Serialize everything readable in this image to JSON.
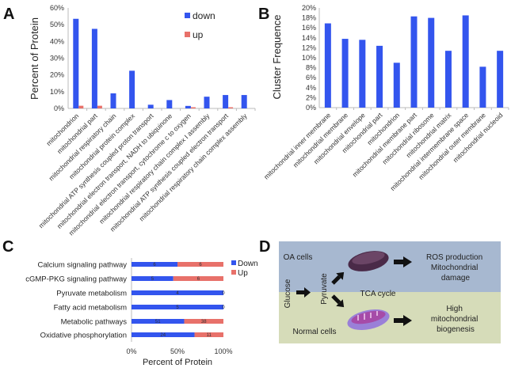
{
  "colors": {
    "down": "#3355ee",
    "up": "#e8716a",
    "oa_bg": "#a7b8d0",
    "normal_bg": "#d6dcb9",
    "arrow": "#111111"
  },
  "chart_data": [
    {
      "panel": "A",
      "type": "bar",
      "ylabel": "Percent of Protein",
      "ylim": [
        0,
        60
      ],
      "yticks": [
        "0%",
        "10%",
        "20%",
        "30%",
        "40%",
        "50%",
        "60%"
      ],
      "grid": false,
      "legend_position": "top-right",
      "categories": [
        "mitochondrion",
        "mitochondrial part",
        "mitochondrial respiratory chain",
        "mitochondrial protein complex",
        "mitochondrial ATP synthesis coupled proton transport",
        "mitochondrial electron transport, NADH to ubiquinone",
        "mitochondrial electron transport, cytochrome c to oxygen",
        "mitochondrial respiratory chain complex I assembly",
        "mitochondrial ATP synthesis coupled electron transport",
        "mitochondrial respiratory chain complex assembly"
      ],
      "series": [
        {
          "name": "down",
          "values": [
            53.5,
            47.5,
            9,
            22.5,
            2.2,
            5,
            1.5,
            7,
            8,
            8
          ]
        },
        {
          "name": "up",
          "values": [
            1.6,
            1.6,
            0,
            0,
            0,
            0,
            0.7,
            0,
            0.7,
            0
          ]
        }
      ]
    },
    {
      "panel": "B",
      "type": "bar",
      "ylabel": "Cluster Frequence",
      "ylim": [
        0,
        20
      ],
      "yticks": [
        "0%",
        "2%",
        "4%",
        "6%",
        "8%",
        "10%",
        "12%",
        "14%",
        "16%",
        "18%",
        "20%"
      ],
      "grid": false,
      "categories": [
        "mitochondrial inner membrane",
        "mitochondrial membrane",
        "mitochondrial envelope",
        "mitochondrial part",
        "mitochondrion",
        "mitochondrial membrane part",
        "mitochondrial ribosome",
        "mitochondrial matrix",
        "mitochondrial intermembrane space",
        "mitochondrial outer membrane",
        "mitochondrial nucleoid"
      ],
      "values": [
        16.9,
        13.8,
        13.6,
        12.4,
        9.0,
        18.3,
        18.0,
        11.4,
        18.5,
        8.2,
        11.4
      ]
    },
    {
      "panel": "C",
      "type": "bar",
      "orientation": "horizontal-stacked-100%",
      "xlabel": "Percent of Protein",
      "xticks": [
        "0%",
        "50%",
        "100%"
      ],
      "legend_position": "right",
      "categories": [
        "Calcium signaling pathway",
        "cGMP-PKG signaling pathway",
        "Pyruvate metabolism",
        "Fatty acid metabolism",
        "Metabolic pathways",
        "Oxidative phosphorylation"
      ],
      "series": [
        {
          "name": "Down",
          "values": [
            6,
            5,
            4,
            5,
            51,
            24
          ]
        },
        {
          "name": "Up",
          "values": [
            6,
            6,
            0,
            0,
            38,
            11
          ]
        }
      ]
    }
  ],
  "diagram": {
    "panel": "D",
    "oa_cells": "OA cells",
    "normal_cells": "Normal cells",
    "glucose": "Glucose",
    "pyruvate": "Pyruvate",
    "tca": "TCA cycle",
    "oa_outcome": [
      "ROS production",
      "Mitochondrial",
      "damage"
    ],
    "normal_outcome": [
      "High",
      "mitochondrial",
      "biogenesis"
    ]
  }
}
